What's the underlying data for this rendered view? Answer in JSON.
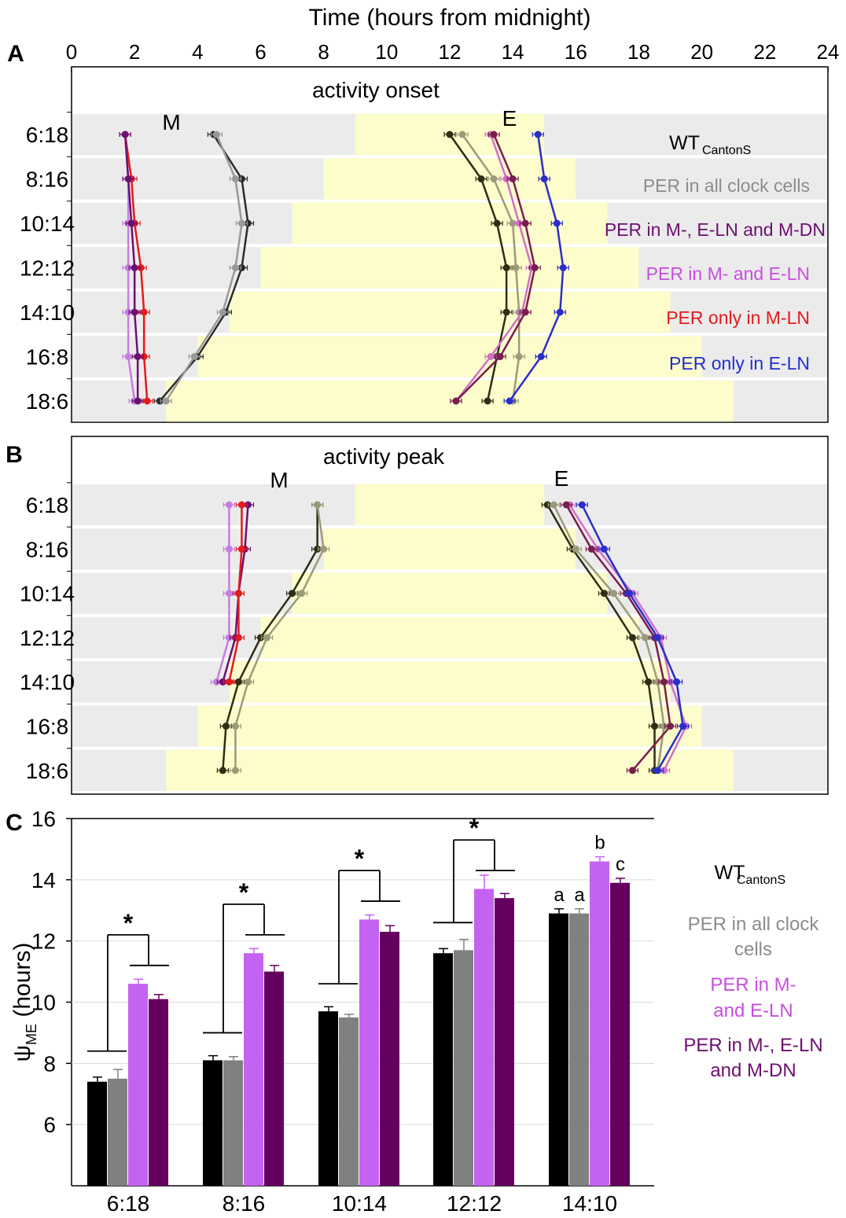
{
  "chart_data": [
    {
      "panel": "A",
      "type": "line",
      "title": "activity onset",
      "xlabel": "Time (hours from midnight)",
      "xlim": [
        0,
        24
      ],
      "x_ticks": [
        "0",
        "2",
        "4",
        "6",
        "8",
        "10",
        "12",
        "14",
        "16",
        "18",
        "20",
        "22",
        "24"
      ],
      "photoperiods": [
        "6:18",
        "8:16",
        "10:14",
        "12:12",
        "14:10",
        "16:8",
        "18:6"
      ],
      "light_phase": [
        [
          9,
          15
        ],
        [
          8,
          16
        ],
        [
          7,
          17
        ],
        [
          6,
          18
        ],
        [
          5,
          19
        ],
        [
          4,
          20
        ],
        [
          3,
          21
        ]
      ],
      "peak_labels": [
        "M",
        "E"
      ],
      "legend": [
        {
          "text": "WT",
          "sub": "CantonS",
          "color": "#000000"
        },
        {
          "text": "PER in all clock cells",
          "color": "#8c8c8c"
        },
        {
          "text": "PER in M-, E-LN and M-DN",
          "color": "#6b1070"
        },
        {
          "text": "PER in M- and E-LN",
          "color": "#c84ee0"
        },
        {
          "text": "PER only in M-LN",
          "color": "#e41a1c"
        },
        {
          "text": "PER only in E-LN",
          "color": "#1f2fd0"
        }
      ],
      "series": [
        {
          "name": "WT CantonS",
          "group": "M",
          "color": "#2b2b2b",
          "values": [
            4.5,
            5.4,
            5.6,
            5.4,
            4.9,
            4.0,
            2.8
          ]
        },
        {
          "name": "PER in all clock cells",
          "group": "M",
          "color": "#999999",
          "values": [
            4.6,
            5.2,
            5.4,
            5.2,
            4.8,
            3.9,
            3.0
          ]
        },
        {
          "name": "PER only in M-LN",
          "group": "M",
          "color": "#e41a1c",
          "values": [
            1.7,
            1.9,
            2.0,
            2.2,
            2.3,
            2.3,
            2.4
          ]
        },
        {
          "name": "PER in M- and E-LN",
          "group": "M",
          "color": "#c77ee0",
          "values": [
            1.7,
            1.8,
            1.8,
            1.8,
            1.8,
            1.8,
            2.0
          ]
        },
        {
          "name": "PER in M-, E-LN and M-DN",
          "group": "M",
          "color": "#6b1070",
          "values": [
            1.7,
            1.8,
            1.9,
            2.0,
            2.0,
            2.1,
            2.1
          ]
        },
        {
          "name": "WT CantonS",
          "group": "E",
          "color": "#2e2e14",
          "values": [
            12.0,
            13.0,
            13.5,
            13.8,
            13.8,
            13.5,
            13.2
          ]
        },
        {
          "name": "PER in all clock cells",
          "group": "E",
          "color": "#9b9b7a",
          "values": [
            12.4,
            13.4,
            14.0,
            14.1,
            14.2,
            14.2,
            14.0
          ]
        },
        {
          "name": "PER in M- and E-LN",
          "group": "E",
          "color": "#d070c8",
          "values": [
            13.3,
            13.8,
            14.2,
            14.6,
            14.3,
            13.3,
            12.2
          ]
        },
        {
          "name": "PER in M-, E-LN and M-DN",
          "group": "E",
          "color": "#7a1e4e",
          "values": [
            13.4,
            14.0,
            14.4,
            14.7,
            14.4,
            13.6,
            12.2
          ]
        },
        {
          "name": "PER only in E-LN",
          "group": "E",
          "color": "#2a2fc8",
          "values": [
            14.8,
            15.0,
            15.4,
            15.6,
            15.5,
            14.9,
            13.9
          ]
        }
      ]
    },
    {
      "panel": "B",
      "type": "line",
      "title": "activity peak",
      "xlim": [
        0,
        24
      ],
      "photoperiods": [
        "6:18",
        "8:16",
        "10:14",
        "12:12",
        "14:10",
        "16:8",
        "18:6"
      ],
      "light_phase": [
        [
          9,
          15
        ],
        [
          8,
          16
        ],
        [
          7,
          17
        ],
        [
          6,
          18
        ],
        [
          5,
          19
        ],
        [
          4,
          20
        ],
        [
          3,
          21
        ]
      ],
      "peak_labels": [
        "M",
        "E"
      ],
      "series": [
        {
          "name": "WT CantonS",
          "group": "M",
          "color": "#2e2e14",
          "values": [
            7.8,
            7.8,
            7.0,
            6.0,
            5.3,
            4.9,
            4.8
          ]
        },
        {
          "name": "PER in all clock cells",
          "group": "M",
          "color": "#9b9b7a",
          "values": [
            7.8,
            8.0,
            7.3,
            6.2,
            5.6,
            5.2,
            5.2
          ]
        },
        {
          "name": "PER in M- and E-LN",
          "group": "M",
          "color": "#c77ee0",
          "values": [
            5.0,
            5.0,
            5.0,
            5.0,
            4.6,
            null,
            null
          ]
        },
        {
          "name": "PER in M-, E-LN and M-DN",
          "group": "M",
          "color": "#6b1070",
          "values": [
            5.6,
            5.5,
            5.3,
            5.2,
            4.8,
            null,
            null
          ]
        },
        {
          "name": "PER only in M-LN",
          "group": "M",
          "color": "#e41a1c",
          "values": [
            5.4,
            5.4,
            5.3,
            5.3,
            5.0,
            null,
            null
          ]
        },
        {
          "name": "WT CantonS",
          "group": "E",
          "color": "#2e2e14",
          "values": [
            15.1,
            15.9,
            16.9,
            17.8,
            18.3,
            18.5,
            18.5
          ]
        },
        {
          "name": "PER in all clock cells",
          "group": "E",
          "color": "#9b9b7a",
          "values": [
            15.3,
            16.0,
            17.2,
            18.2,
            18.6,
            18.8,
            18.6
          ]
        },
        {
          "name": "PER in M- and E-LN",
          "group": "E",
          "color": "#d070c8",
          "values": [
            15.8,
            16.7,
            17.8,
            18.7,
            19.0,
            19.5,
            18.8
          ]
        },
        {
          "name": "PER in M-, E-LN and M-DN",
          "group": "E",
          "color": "#7a1e4e",
          "values": [
            15.7,
            16.5,
            17.6,
            18.5,
            18.8,
            19.0,
            17.8
          ]
        },
        {
          "name": "PER only in E-LN",
          "group": "E",
          "color": "#2a2fc8",
          "values": [
            16.2,
            16.9,
            17.7,
            18.6,
            19.2,
            19.4,
            18.6
          ]
        }
      ]
    },
    {
      "panel": "C",
      "type": "bar",
      "ylabel": "ψ",
      "ylabel_sub": "ME",
      "ylabel_suffix": " (hours)",
      "ylim": [
        4,
        16
      ],
      "y_ticks": [
        "6",
        "8",
        "10",
        "12",
        "14",
        "16"
      ],
      "categories": [
        "6:18",
        "8:16",
        "10:14",
        "12:12",
        "14:10"
      ],
      "series": [
        {
          "name": "WT CantonS",
          "color": "#000000",
          "values": [
            7.4,
            8.1,
            9.7,
            11.6,
            12.9
          ],
          "errors": [
            0.15,
            0.15,
            0.15,
            0.15,
            0.15
          ]
        },
        {
          "name": "PER in all clock cells",
          "color": "#808080",
          "values": [
            7.5,
            8.1,
            9.5,
            11.7,
            12.9
          ],
          "errors": [
            0.3,
            0.12,
            0.1,
            0.35,
            0.15
          ]
        },
        {
          "name": "PER in M- and E-LN",
          "color": "#c462f2",
          "values": [
            10.6,
            11.6,
            12.7,
            13.7,
            14.6
          ],
          "errors": [
            0.15,
            0.15,
            0.15,
            0.45,
            0.15
          ]
        },
        {
          "name": "PER in M-, E-LN and M-DN",
          "color": "#65005f",
          "values": [
            10.1,
            11.0,
            12.3,
            13.4,
            13.9
          ],
          "errors": [
            0.15,
            0.2,
            0.2,
            0.15,
            0.15
          ]
        }
      ],
      "significance": [
        "*",
        "*",
        "*",
        "*"
      ],
      "group_letters": [
        "a",
        "a",
        "b",
        "c"
      ],
      "legend": [
        {
          "lines": [
            "WT"
          ],
          "sub": "CantonS",
          "color": "#000000"
        },
        {
          "lines": [
            "PER in all clock",
            "cells"
          ],
          "color": "#8c8c8c"
        },
        {
          "lines": [
            "PER in M-",
            "and E-LN"
          ],
          "color": "#c84ee0"
        },
        {
          "lines": [
            "PER in M-, E-LN",
            "and M-DN"
          ],
          "color": "#6b1070"
        }
      ]
    }
  ],
  "panel_letters": [
    "A",
    "B",
    "C"
  ]
}
